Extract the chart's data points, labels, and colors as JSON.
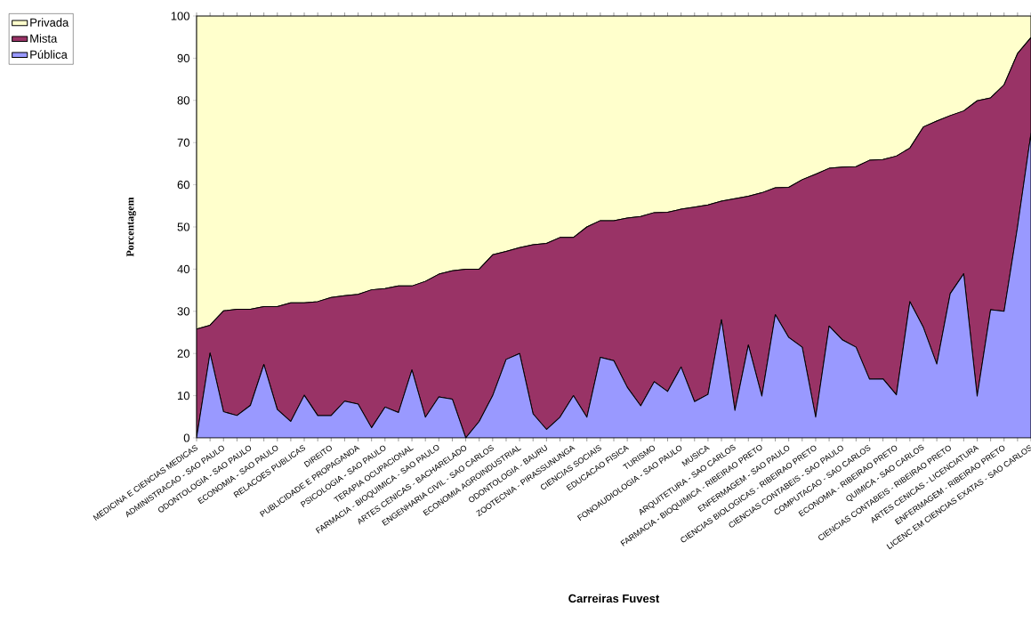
{
  "chart_data": {
    "type": "area",
    "stacked": true,
    "xlabel": "Carreiras Fuvest",
    "ylabel": "Porcentagem",
    "categories": [
      "MEDICINA E CIENCIAS MEDICAS",
      null,
      "ADMINISTRACAO - SAO PAULO",
      null,
      "ODONTOLOGIA - SAO PAULO",
      null,
      "ECONOMIA - SAO PAULO",
      null,
      "RELACOES PUBLICAS",
      null,
      "DIREITO",
      null,
      "PUBLICIDADE E PROPAGANDA",
      null,
      "PSICOLOGIA - SAO PAULO",
      null,
      "TERAPIA OCUPACIONAL",
      null,
      "FARMACIA - BIOQUIMICA - SAO PAULO",
      null,
      "ARTES CENICAS - BACHARELADO",
      null,
      "ENGENHARIA CIVIL - SAO CARLOS",
      null,
      "ECONOMIA AGROINDUSTRIAL",
      null,
      "ODONTOLOGIA - BAURU",
      null,
      "ZOOTECNIA - PIRASSUNUNGA",
      null,
      "CIENCIAS SOCIAIS",
      null,
      "EDUCACAO FISICA",
      null,
      "TURISMO",
      null,
      "FONOAUDIOLOGIA - SAO PAULO",
      null,
      "MUSICA",
      null,
      "ARQUITETURA - SAO CARLOS",
      null,
      "FARMACIA - BIOQUIMICA - RIBEIRAO PRETO",
      null,
      "ENFERMAGEM - SAO PAULO",
      null,
      "CIENCIAS BIOLOGICAS - RIBEIRAO PRETO",
      null,
      "CIENCIAS CONTABEIS - SAO PAULO",
      null,
      "COMPUTACAO - SAO CARLOS",
      null,
      "ECONOMIA - RIBEIRAO PRETO",
      null,
      "QUIMICA - SAO CARLOS",
      null,
      "CIENCIAS CONTABEIS - RIBEIRAO PRETO",
      null,
      "ARTES CENICAS - LICENCIATURA",
      null,
      "ENFERMAGEM - RIBEIRAO PRETO",
      null,
      "LICENC EM CIENCIAS EXATAS - SAO CARLOS"
    ],
    "series": [
      {
        "name": "Pública",
        "color": "#9999ff",
        "values": [
          0,
          20.1,
          6.2,
          5.3,
          7.7,
          17.4,
          6.7,
          3.9,
          10.1,
          5.3,
          5.3,
          8.7,
          8.0,
          2.4,
          7.3,
          6.0,
          16.1,
          4.9,
          9.7,
          9.2,
          0,
          3.9,
          10.0,
          18.6,
          20.0,
          5.7,
          2.0,
          4.9,
          10.0,
          4.9,
          19.1,
          18.3,
          12.0,
          7.6,
          13.3,
          11.0,
          16.8,
          8.6,
          10.3,
          28.0,
          6.5,
          22.0,
          9.9,
          29.2,
          23.8,
          21.5,
          4.9,
          26.5,
          23.2,
          21.5,
          13.9,
          14.0,
          10.2,
          32.3,
          26.2,
          17.5,
          34.2,
          38.9,
          9.9,
          30.4,
          30.0,
          50.0,
          72.2
        ]
      },
      {
        "name": "Mista",
        "color": "#993366",
        "values": [
          25.8,
          6.6,
          23.9,
          25.2,
          22.8,
          13.7,
          24.4,
          28.1,
          21.9,
          27.0,
          28.0,
          25.0,
          26.0,
          32.7,
          28.1,
          30.0,
          19.9,
          32.2,
          29.1,
          30.4,
          40.0,
          36.1,
          33.4,
          25.6,
          25.1,
          40.1,
          44.1,
          42.6,
          37.5,
          45.1,
          32.4,
          33.2,
          40.1,
          44.9,
          40.1,
          42.5,
          37.4,
          46.1,
          44.9,
          28.1,
          50.2,
          35.3,
          48.2,
          30.1,
          35.6,
          39.7,
          57.6,
          37.4,
          41.0,
          42.8,
          51.9,
          52.0,
          56.6,
          36.4,
          47.5,
          57.6,
          42.2,
          38.6,
          70.0,
          50.2,
          53.7,
          41.1,
          22.7
        ]
      },
      {
        "name": "Privada",
        "color": "#ffffcc",
        "values": [
          74.2,
          73.3,
          69.9,
          69.5,
          69.5,
          68.9,
          68.9,
          68.0,
          68.0,
          67.7,
          66.7,
          66.3,
          66.0,
          64.9,
          64.6,
          64.0,
          64.0,
          62.9,
          61.2,
          60.4,
          60.0,
          60.0,
          56.6,
          55.8,
          54.9,
          54.2,
          53.9,
          52.5,
          52.5,
          50.0,
          48.5,
          48.5,
          47.9,
          47.5,
          46.6,
          46.5,
          45.8,
          45.3,
          44.8,
          43.9,
          43.3,
          42.7,
          41.9,
          40.7,
          40.6,
          38.8,
          37.5,
          36.1,
          35.8,
          35.7,
          34.2,
          34.0,
          33.2,
          31.3,
          26.3,
          24.9,
          23.6,
          22.5,
          20.1,
          19.4,
          16.3,
          8.9,
          5.1
        ]
      }
    ],
    "ylim": [
      0,
      100
    ],
    "yticks": [
      0,
      10,
      20,
      30,
      40,
      50,
      60,
      70,
      80,
      90,
      100
    ],
    "legend": "top left"
  }
}
